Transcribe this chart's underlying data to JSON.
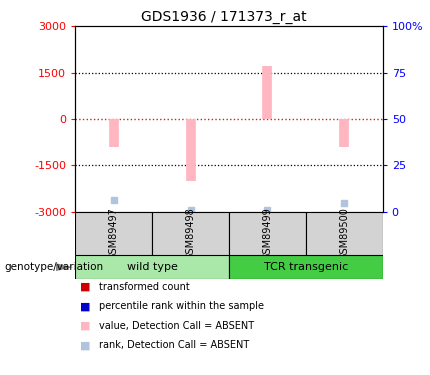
{
  "title": "GDS1936 / 171373_r_at",
  "samples": [
    "GSM89497",
    "GSM89498",
    "GSM89499",
    "GSM89500"
  ],
  "bar_values": [
    -900,
    -2000,
    1700,
    -900
  ],
  "rank_values": [
    -2600,
    -2950,
    -2950,
    -2700
  ],
  "ylim_left": [
    -3000,
    3000
  ],
  "ylim_right": [
    0,
    100
  ],
  "yticks_left": [
    -3000,
    -1500,
    0,
    1500,
    3000
  ],
  "ytick_labels_left": [
    "-3000",
    "-1500",
    "0",
    "1500",
    "3000"
  ],
  "yticks_right": [
    0,
    25,
    50,
    75,
    100
  ],
  "ytick_labels_right": [
    "0",
    "25",
    "50",
    "75",
    "100%"
  ],
  "hlines_dotted": [
    -1500,
    1500
  ],
  "bar_color_absent": "#ffb6c1",
  "rank_color_absent": "#b0c4de",
  "zero_line_color": "#cc2222",
  "group_label": "genotype/variation",
  "group1_label": "wild type",
  "group2_label": "TCR transgenic",
  "group1_color": "#aae8aa",
  "group2_color": "#44cc44",
  "sample_box_color": "#d3d3d3",
  "legend_items": [
    {
      "label": "transformed count",
      "color": "#cc0000"
    },
    {
      "label": "percentile rank within the sample",
      "color": "#0000cc"
    },
    {
      "label": "value, Detection Call = ABSENT",
      "color": "#ffb6c1"
    },
    {
      "label": "rank, Detection Call = ABSENT",
      "color": "#b0c4de"
    }
  ]
}
